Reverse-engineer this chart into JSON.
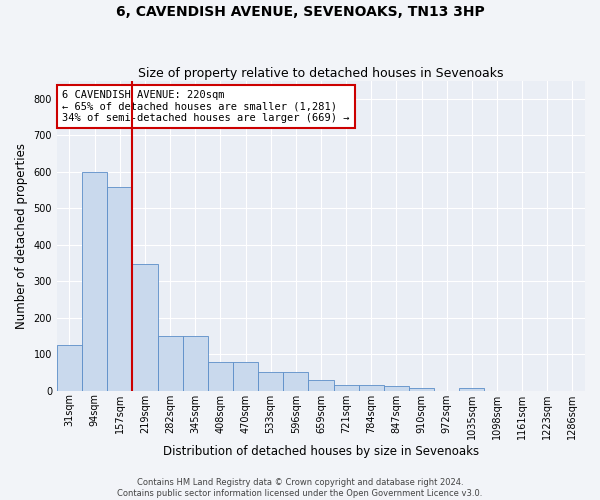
{
  "title": "6, CAVENDISH AVENUE, SEVENOAKS, TN13 3HP",
  "subtitle": "Size of property relative to detached houses in Sevenoaks",
  "xlabel": "Distribution of detached houses by size in Sevenoaks",
  "ylabel": "Number of detached properties",
  "categories": [
    "31sqm",
    "94sqm",
    "157sqm",
    "219sqm",
    "282sqm",
    "345sqm",
    "408sqm",
    "470sqm",
    "533sqm",
    "596sqm",
    "659sqm",
    "721sqm",
    "784sqm",
    "847sqm",
    "910sqm",
    "972sqm",
    "1035sqm",
    "1098sqm",
    "1161sqm",
    "1223sqm",
    "1286sqm"
  ],
  "values": [
    125,
    600,
    558,
    348,
    150,
    150,
    78,
    78,
    52,
    52,
    30,
    15,
    15,
    13,
    8,
    0,
    8,
    0,
    0,
    0,
    0
  ],
  "bar_color": "#c9d9ed",
  "bar_edge_color": "#5b8dc8",
  "property_bin_index": 3,
  "property_line_color": "#cc0000",
  "annotation_line1": "6 CAVENDISH AVENUE: 220sqm",
  "annotation_line2": "← 65% of detached houses are smaller (1,281)",
  "annotation_line3": "34% of semi-detached houses are larger (669) →",
  "annotation_box_edgecolor": "#cc0000",
  "ylim": [
    0,
    850
  ],
  "yticks": [
    0,
    100,
    200,
    300,
    400,
    500,
    600,
    700,
    800
  ],
  "footer1": "Contains HM Land Registry data © Crown copyright and database right 2024.",
  "footer2": "Contains public sector information licensed under the Open Government Licence v3.0.",
  "bg_color": "#eaeef5",
  "grid_color": "#ffffff",
  "fig_bg_color": "#f2f4f8",
  "title_fontsize": 10,
  "subtitle_fontsize": 9,
  "axis_label_fontsize": 8.5,
  "tick_fontsize": 7,
  "annot_fontsize": 7.5,
  "footer_fontsize": 6
}
